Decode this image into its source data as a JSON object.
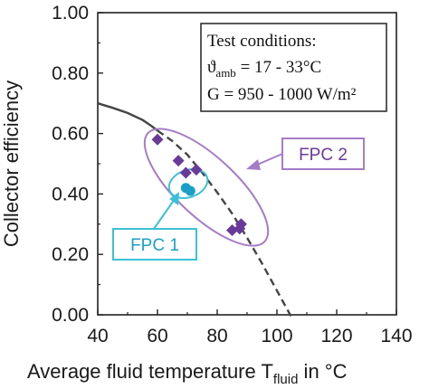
{
  "chart_data": {
    "type": "scatter",
    "xlabel_main": "Average fluid temperature T",
    "xlabel_sub": "fluid",
    "xlabel_unit": " in °C",
    "ylabel": "Collector efficiency",
    "xlim": [
      40,
      140
    ],
    "ylim": [
      0.0,
      1.0
    ],
    "xticks": [
      "40",
      "60",
      "80",
      "100",
      "120",
      "140"
    ],
    "yticks": [
      "0.00",
      "0.20",
      "0.40",
      "0.60",
      "0.80",
      "1.00"
    ],
    "grid": false,
    "conditions": {
      "title": "Test conditions:",
      "temp_symbol": "ϑ",
      "temp_sub": "amb",
      "temp_value": " = 17 - 33°C",
      "irradiance": "G = 950 - 1000 W/m²"
    },
    "efficiency_curve": {
      "solid": {
        "x": [
          40,
          45,
          50,
          55,
          58,
          60
        ],
        "y": [
          0.7,
          0.685,
          0.668,
          0.645,
          0.625,
          0.61
        ]
      },
      "dashed": {
        "x": [
          60,
          65,
          70,
          75,
          80,
          85,
          90,
          95,
          100,
          105
        ],
        "y": [
          0.61,
          0.575,
          0.53,
          0.47,
          0.405,
          0.335,
          0.255,
          0.17,
          0.08,
          -0.01
        ]
      }
    },
    "series": [
      {
        "name": "FPC 2",
        "color": "#6a3a9a",
        "marker": "diamond",
        "points": [
          [
            60,
            0.58
          ],
          [
            67,
            0.51
          ],
          [
            69.5,
            0.47
          ],
          [
            73,
            0.48
          ],
          [
            85,
            0.28
          ],
          [
            87.5,
            0.285
          ],
          [
            88,
            0.3
          ]
        ]
      },
      {
        "name": "FPC 1",
        "color": "#1aa0c8",
        "marker": "circle",
        "points": [
          [
            69.5,
            0.42
          ],
          [
            71,
            0.41
          ]
        ]
      }
    ],
    "annotations": {
      "fpc2_label": "FPC 2",
      "fpc1_label": "FPC 1",
      "fpc2_color": "#a57cc8",
      "fpc1_color": "#3cc0d8"
    }
  }
}
